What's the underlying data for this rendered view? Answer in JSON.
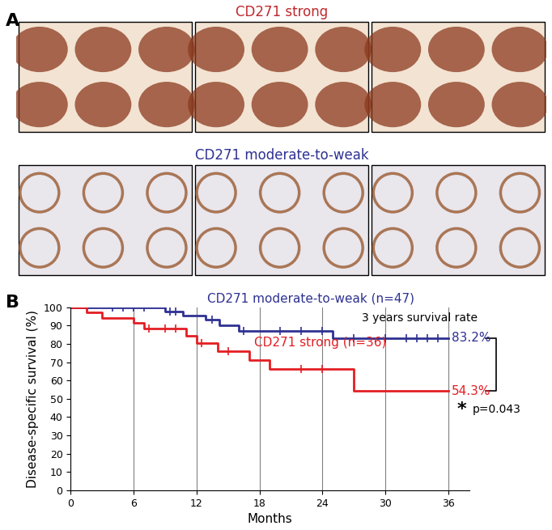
{
  "image_panel": {
    "panel_label": "A",
    "rows": [
      {
        "title": "CD271 strong",
        "color": "#c0282d"
      },
      {
        "title": "CD271 moderate-to-weak",
        "color": "#2e3192"
      }
    ]
  },
  "chart_data": {
    "type": "step",
    "panel_label": "B",
    "x_label": "Months",
    "y_label": "Disease-specific survival (%)",
    "xlim": [
      0,
      38
    ],
    "ylim": [
      0,
      100
    ],
    "xticks": [
      0,
      6,
      12,
      18,
      24,
      30,
      36
    ],
    "yticks": [
      0,
      10,
      20,
      30,
      40,
      50,
      60,
      70,
      80,
      90,
      100
    ],
    "grid": "x",
    "series": [
      {
        "name": "CD271 moderate-to-weak (n=47)",
        "color": "#2e3192",
        "x": [
          0,
          9,
          10.7,
          12.9,
          14.2,
          16,
          25,
          36
        ],
        "values": [
          100,
          97.9,
          95.7,
          93.4,
          90.2,
          87.0,
          83.2,
          83.2
        ],
        "censored": [
          4,
          5,
          6,
          7,
          9.5,
          10,
          13.5,
          16.5,
          20,
          22,
          24,
          27,
          30,
          32,
          33,
          34,
          35
        ],
        "end_label": "83.2%"
      },
      {
        "name": "CD271 strong (n=36)",
        "color": "#e31e24",
        "x": [
          0,
          1.5,
          3,
          6,
          7,
          11,
          12,
          14,
          17,
          19,
          27,
          36
        ],
        "values": [
          100,
          97.2,
          94.4,
          91.5,
          88.6,
          84.3,
          80.5,
          76.2,
          71.2,
          66.4,
          54.3,
          54.3
        ],
        "censored": [
          7.5,
          9,
          10,
          12.5,
          15,
          22,
          24
        ],
        "end_label": "54.3%"
      }
    ],
    "annotations": [
      "3 years survival rate",
      "*",
      "p=0.043"
    ]
  }
}
